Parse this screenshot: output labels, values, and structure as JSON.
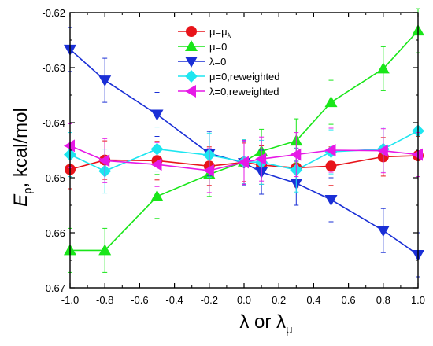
{
  "chart_data": {
    "type": "line",
    "xlabel": "λ or λ_μ",
    "xlabel_parts": {
      "main": "λ or λ",
      "sub": "μ"
    },
    "ylabel": "E_p, kcal/mol",
    "ylabel_parts": {
      "main": "E",
      "sub": "p",
      "rest": ", kcal/mol"
    },
    "xlim": [
      -1.0,
      1.0
    ],
    "ylim": [
      -0.67,
      -0.62
    ],
    "xticks": [
      -1.0,
      -0.8,
      -0.6,
      -0.4,
      -0.2,
      0.0,
      0.2,
      0.4,
      0.6,
      0.8,
      1.0
    ],
    "xtick_labels": [
      "-1.0",
      "-0.8",
      "-0.6",
      "-0.4",
      "-0.2",
      "0.0",
      "0.2",
      "0.4",
      "0.6",
      "0.8",
      "1.0"
    ],
    "yticks": [
      -0.67,
      -0.66,
      -0.65,
      -0.64,
      -0.63,
      -0.62
    ],
    "ytick_labels": [
      "-0.67",
      "-0.66",
      "-0.65",
      "-0.64",
      "-0.63",
      "-0.62"
    ],
    "x": [
      -1.0,
      -0.8,
      -0.5,
      -0.2,
      0.0,
      0.1,
      0.3,
      0.5,
      0.8,
      1.0
    ],
    "legend_position": "top-center",
    "series": [
      {
        "name": "μ=μ_λ",
        "name_parts": {
          "main": "μ=μ",
          "sub": "λ"
        },
        "color": "#e8141a",
        "marker": "circle",
        "values": [
          -0.6485,
          -0.6468,
          -0.6469,
          -0.6479,
          -0.6472,
          -0.6477,
          -0.6482,
          -0.6479,
          -0.6462,
          -0.646
        ],
        "errors": [
          0.0035,
          0.0035,
          0.0035,
          0.0035,
          0.0035,
          0.0035,
          0.0035,
          0.0035,
          0.0035,
          0.0035
        ]
      },
      {
        "name": "μ=0",
        "color": "#19e619",
        "marker": "triangle-up",
        "values": [
          -0.6632,
          -0.6632,
          -0.6534,
          -0.6494,
          -0.6471,
          -0.6452,
          -0.6433,
          -0.6363,
          -0.6302,
          -0.6233
        ],
        "errors": [
          0.004,
          0.004,
          0.004,
          0.004,
          0.004,
          0.004,
          0.004,
          0.004,
          0.004,
          0.004
        ]
      },
      {
        "name": "λ=0",
        "color": "#1a2fd6",
        "marker": "triangle-down",
        "values": [
          -0.6267,
          -0.6323,
          -0.6385,
          -0.6456,
          -0.6473,
          -0.649,
          -0.651,
          -0.654,
          -0.6596,
          -0.664
        ],
        "errors": [
          0.004,
          0.004,
          0.004,
          0.004,
          0.004,
          0.004,
          0.004,
          0.004,
          0.004,
          0.004
        ]
      },
      {
        "name": "μ=0,reweighted",
        "color": "#1ee6f0",
        "marker": "diamond",
        "values": [
          -0.6458,
          -0.6488,
          -0.6448,
          -0.6459,
          -0.6471,
          -0.6472,
          -0.6486,
          -0.6453,
          -0.6448,
          -0.6415
        ],
        "errors": [
          0.004,
          0.004,
          0.004,
          0.004,
          0.004,
          0.004,
          0.004,
          0.004,
          0.004,
          0.004
        ]
      },
      {
        "name": "λ=0,reweighted",
        "color": "#e619e6",
        "marker": "triangle-left",
        "values": [
          -0.6442,
          -0.6469,
          -0.6476,
          -0.6487,
          -0.6472,
          -0.6466,
          -0.6458,
          -0.645,
          -0.6451,
          -0.6458
        ],
        "errors": [
          0.004,
          0.004,
          0.004,
          0.004,
          0.004,
          0.004,
          0.004,
          0.004,
          0.004,
          0.004
        ]
      }
    ]
  }
}
